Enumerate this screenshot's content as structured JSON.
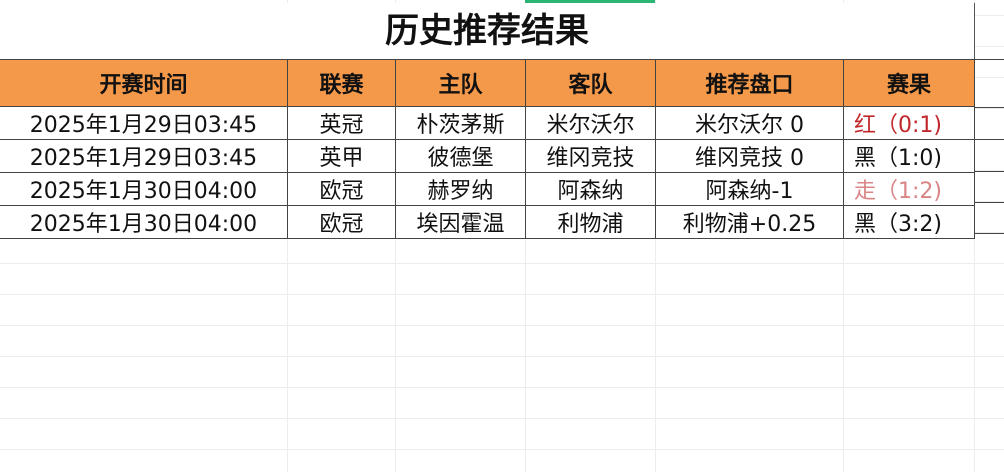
{
  "sheet": {
    "title": "历史推荐结果",
    "columns": [
      "开赛时间",
      "联赛",
      "主队",
      "客队",
      "推荐盘口",
      "赛果"
    ],
    "rows": [
      {
        "time": "2025年1月29日03:45",
        "league": "英冠",
        "home": "朴茨茅斯",
        "away": "米尔沃尔",
        "pick": "米尔沃尔 0",
        "result": "红（0:1)",
        "result_color": "#c0282d"
      },
      {
        "time": "2025年1月29日03:45",
        "league": "英甲",
        "home": "彼德堡",
        "away": "维冈竞技",
        "pick": "维冈竞技 0",
        "result": "黑（1:0)",
        "result_color": "#111111"
      },
      {
        "time": "2025年1月30日04:00",
        "league": "欧冠",
        "home": "赫罗纳",
        "away": "阿森纳",
        "pick": "阿森纳-1",
        "result": "走（1:2)",
        "result_color": "#d98585"
      },
      {
        "time": "2025年1月30日04:00",
        "league": "欧冠",
        "home": "埃因霍温",
        "away": "利物浦",
        "pick": "利物浦+0.25",
        "result": "黑（3:2)",
        "result_color": "#111111"
      }
    ]
  },
  "colors": {
    "header_bg": "#f4984a",
    "active_indicator": "#2bb673"
  }
}
